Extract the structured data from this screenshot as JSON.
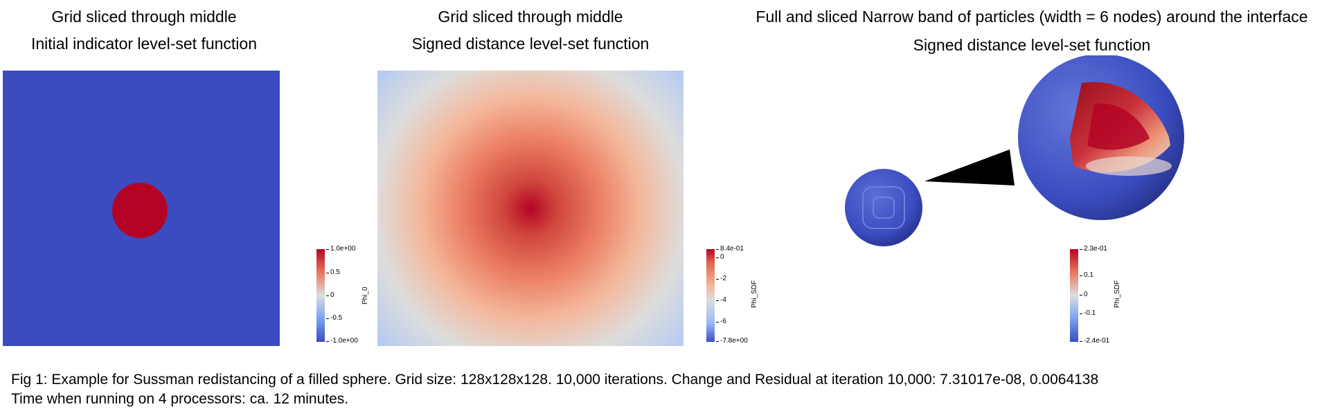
{
  "panel1": {
    "title1": "Grid sliced through middle",
    "title2": "Initial indicator level-set function",
    "colorbar": {
      "label": "Phi_0",
      "ticks": [
        "1.0e+00",
        "0.5",
        "0",
        "-0.5",
        "-1.0e+00"
      ]
    },
    "colors": {
      "outside": "#3b4cc0",
      "inside": "#b40426"
    }
  },
  "panel2": {
    "title1": "Grid sliced through middle",
    "title2": "Signed distance level-set function",
    "colorbar": {
      "label": "Phi_SDF",
      "ticks": [
        "8.4e-01",
        "0",
        "-2",
        "-4",
        "-6",
        "-7.8e+00"
      ]
    }
  },
  "panel3": {
    "title1": "Full and sliced Narrow band of particles (width = 6 nodes) around the interface",
    "title2": "Signed distance level-set function",
    "colorbar": {
      "label": "Phi_SDF",
      "ticks": [
        "2.3e-01",
        "0.1",
        "0",
        "-0.1",
        "-2.4e-01"
      ]
    }
  },
  "caption": {
    "line1": "Fig 1: Example for Sussman redistancing of a filled sphere. Grid size: 128x128x128. 10,000 iterations. Change and Residual at iteration 10,000: 7.31017e-08, 0.0064138",
    "line2": "Time when running on 4 processors: ca. 12 minutes."
  }
}
